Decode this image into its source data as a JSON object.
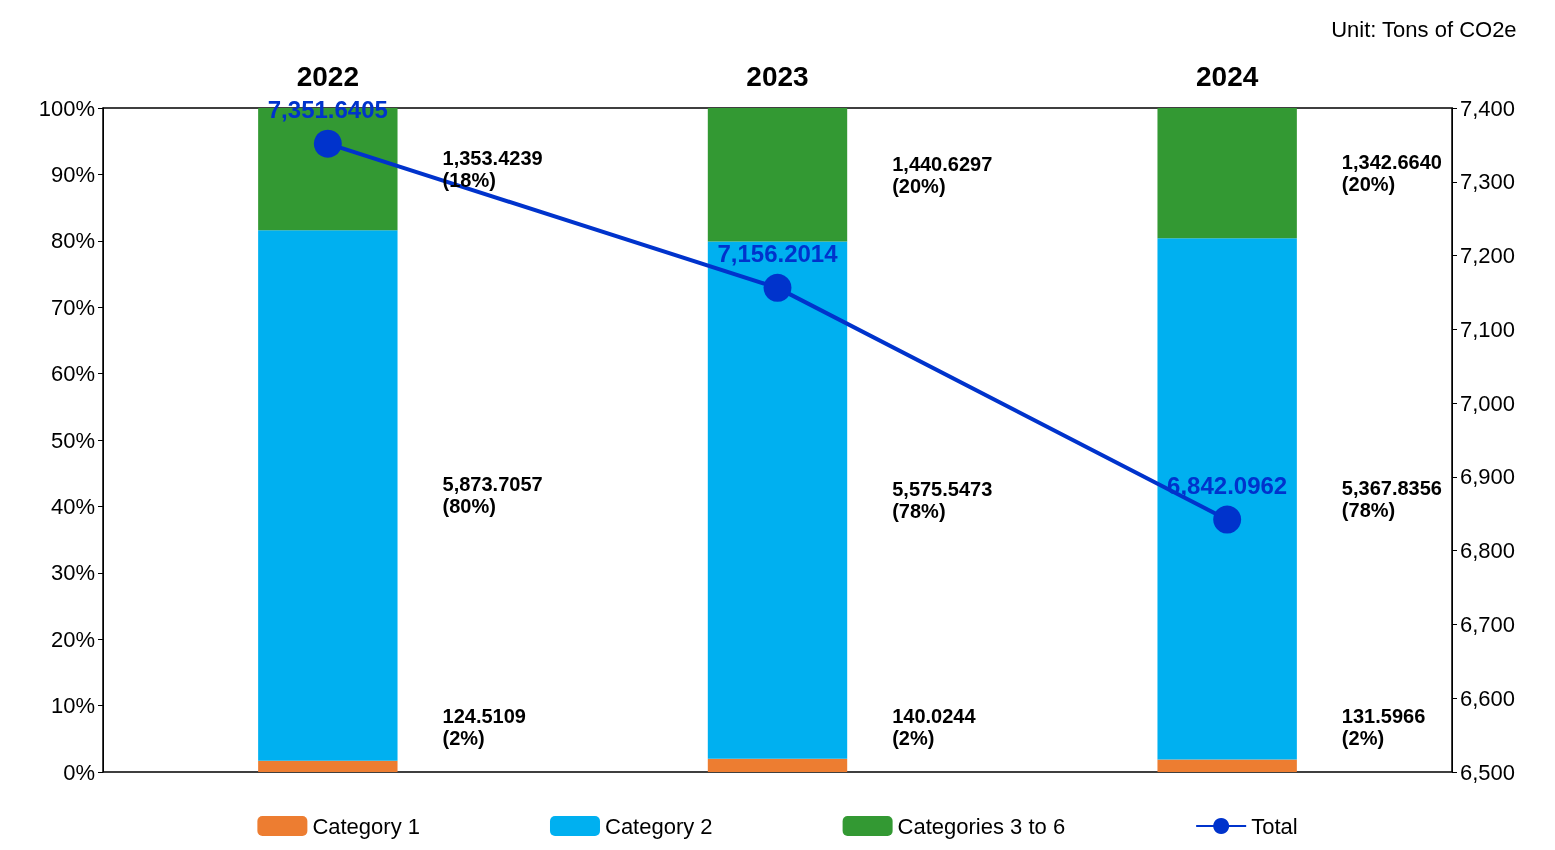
{
  "chart_data": {
    "type": "bar",
    "stacked": true,
    "categories": [
      "2022",
      "2023",
      "2024"
    ],
    "series": [
      {
        "name": "Category 1",
        "color": "#ed7d31",
        "values": [
          1.7,
          2.0,
          1.9
        ]
      },
      {
        "name": "Category 2",
        "color": "#00b0f0",
        "values": [
          79.9,
          77.9,
          78.5
        ]
      },
      {
        "name": "Categories 3 to 6",
        "color": "#339933",
        "values": [
          18.4,
          20.1,
          19.6
        ]
      },
      {
        "name": "Total",
        "type": "line",
        "axis": "y2",
        "color": "#0033cc",
        "marker": "circle",
        "values": [
          7351.6405,
          7156.2014,
          6842.0962
        ],
        "value_labels": [
          "7,351.6405",
          "7,156.2014",
          "6,842.0962"
        ]
      }
    ],
    "ylim": [
      0,
      100
    ],
    "yticks": [
      {
        "value": 0,
        "label": "0%"
      },
      {
        "value": 10,
        "label": "10%"
      },
      {
        "value": 20,
        "label": "20%"
      },
      {
        "value": 30,
        "label": "30%"
      },
      {
        "value": 40,
        "label": "40%"
      },
      {
        "value": 50,
        "label": "50%"
      },
      {
        "value": 60,
        "label": "60%"
      },
      {
        "value": 70,
        "label": "70%"
      },
      {
        "value": 80,
        "label": "80%"
      },
      {
        "value": 90,
        "label": "90%"
      },
      {
        "value": 100,
        "label": "100%"
      }
    ],
    "y2lim": [
      6500,
      7400
    ],
    "y2ticks": [
      {
        "value": 6500,
        "label": "6,500"
      },
      {
        "value": 6600,
        "label": "6,600"
      },
      {
        "value": 6700,
        "label": "6,700"
      },
      {
        "value": 6800,
        "label": "6,800"
      },
      {
        "value": 6900,
        "label": "6,900"
      },
      {
        "value": 7000,
        "label": "7,000"
      },
      {
        "value": 7100,
        "label": "7,100"
      },
      {
        "value": 7200,
        "label": "7,200"
      },
      {
        "value": 7300,
        "label": "7,300"
      },
      {
        "value": 7400,
        "label": "7,400"
      }
    ],
    "annotations": [
      "Unit: Tons of CO2e",
      "124.5109\n(2%)",
      "5,873.7057\n(80%)",
      "1,353.4239\n(18%)",
      "140.0244\n(2%)",
      "5,575.5473\n(78%)",
      "1,440.6297\n(20%)",
      "131.5966\n(2%)",
      "5,367.8356\n(78%)",
      "1,342.6640\n(20%)"
    ],
    "grid": false,
    "legend": "bottom"
  }
}
